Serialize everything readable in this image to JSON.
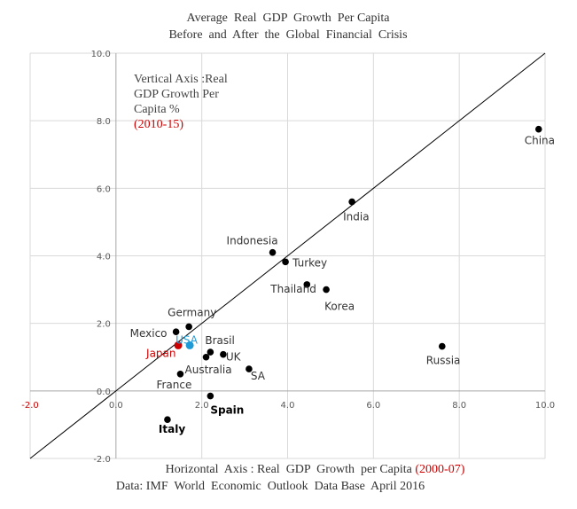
{
  "chart_data": {
    "type": "scatter",
    "title_line1": "Average  Real  GDP  Growth  Per Capita",
    "title_line2": "Before  and  After  the  Global  Financial  Crisis",
    "xlim": [
      -2.0,
      10.0
    ],
    "ylim": [
      -2.0,
      10.0
    ],
    "x_ticks": [
      "-2.0",
      "0.0",
      "2.0",
      "4.0",
      "6.0",
      "8.0",
      "10.0"
    ],
    "y_ticks": [
      "-2.0",
      "0.0",
      "2.0",
      "4.0",
      "6.0",
      "8.0",
      "10.0"
    ],
    "vertical_axis_note": {
      "line1": "Vertical Axis :Real",
      "line2": "GDP Growth Per",
      "line3": "Capita %",
      "period": "(2010-15)"
    },
    "xlabel_main": "Horizontal  Axis : Real  GDP  Growth  per Capita ",
    "xlabel_period": "(2000-07)",
    "source": "Data: IMF  World  Economic  Outlook  Data Base  April 2016",
    "reference_line": "45-degree",
    "colors": {
      "point": "#000000",
      "highlight_red": "#cc0000",
      "highlight_blue": "#1e9bd7",
      "gridline": "#d9d9d9"
    },
    "points": [
      {
        "label": "China",
        "x": 9.85,
        "y": 7.75,
        "color": "#000000",
        "label_color": "#333333"
      },
      {
        "label": "India",
        "x": 5.5,
        "y": 5.6,
        "color": "#000000",
        "label_color": "#333333"
      },
      {
        "label": "Indonesia",
        "x": 3.65,
        "y": 4.1,
        "color": "#000000",
        "label_color": "#333333"
      },
      {
        "label": "Turkey",
        "x": 3.95,
        "y": 3.82,
        "color": "#000000",
        "label_color": "#333333"
      },
      {
        "label": "Thailand",
        "x": 4.45,
        "y": 3.15,
        "color": "#000000",
        "label_color": "#333333"
      },
      {
        "label": "Korea",
        "x": 4.9,
        "y": 3.0,
        "color": "#000000",
        "label_color": "#333333"
      },
      {
        "label": "Russia",
        "x": 7.6,
        "y": 1.32,
        "color": "#000000",
        "label_color": "#333333"
      },
      {
        "label": "Germany",
        "x": 1.7,
        "y": 1.9,
        "color": "#000000",
        "label_color": "#333333"
      },
      {
        "label": "Mexico",
        "x": 1.4,
        "y": 1.75,
        "color": "#000000",
        "label_color": "#333333"
      },
      {
        "label": "Japan",
        "x": 1.45,
        "y": 1.35,
        "color": "#cc0000",
        "label_color": "#cc0000"
      },
      {
        "label": "USA",
        "x": 1.72,
        "y": 1.35,
        "color": "#1e9bd7",
        "label_color": "#1e9bd7"
      },
      {
        "label": "Brasil",
        "x": 2.2,
        "y": 1.15,
        "color": "#000000",
        "label_color": "#333333"
      },
      {
        "label": "UK",
        "x": 2.5,
        "y": 1.08,
        "color": "#000000",
        "label_color": "#333333"
      },
      {
        "label": "Australia",
        "x": 2.1,
        "y": 1.0,
        "color": "#000000",
        "label_color": "#333333"
      },
      {
        "label": "SA",
        "x": 3.1,
        "y": 0.65,
        "color": "#000000",
        "label_color": "#333333"
      },
      {
        "label": "France",
        "x": 1.5,
        "y": 0.5,
        "color": "#000000",
        "label_color": "#333333"
      },
      {
        "label": "Spain",
        "x": 2.2,
        "y": -0.15,
        "color": "#000000",
        "label_color": "#000000"
      },
      {
        "label": "Italy",
        "x": 1.2,
        "y": -0.85,
        "color": "#000000",
        "label_color": "#000000"
      }
    ]
  }
}
